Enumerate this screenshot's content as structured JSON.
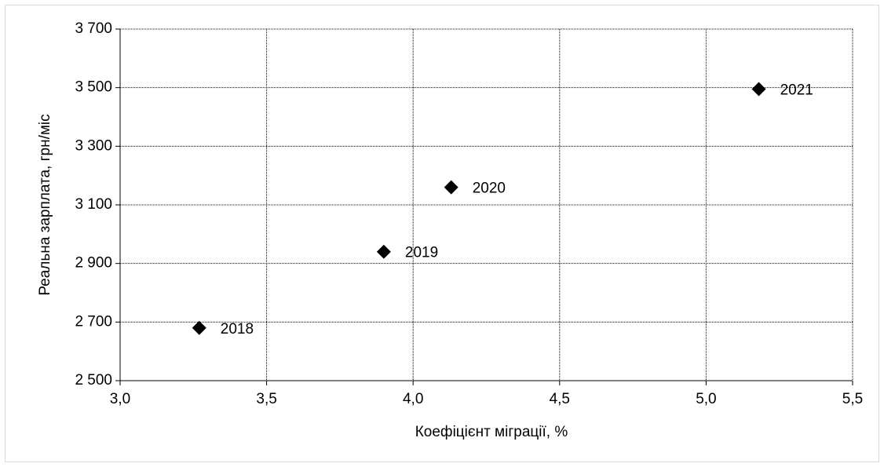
{
  "chart_data": {
    "type": "scatter",
    "x_label": "Коефіцієнт міграції, %",
    "y_label": "Реальна зарплата, грн/міс",
    "x": [
      3.27,
      3.9,
      4.13,
      5.18
    ],
    "values": [
      2680,
      2940,
      3160,
      3495
    ],
    "labels": [
      "2018",
      "2019",
      "2020",
      "2021"
    ],
    "color": "#000000",
    "marker": "diamond",
    "xlim": [
      3.0,
      5.5
    ],
    "xticks": [
      {
        "value": 3.0,
        "label": "3,0"
      },
      {
        "value": 3.5,
        "label": "3,5"
      },
      {
        "value": 4.0,
        "label": "4,0"
      },
      {
        "value": 4.5,
        "label": "4,5"
      },
      {
        "value": 5.0,
        "label": "5,0"
      },
      {
        "value": 5.5,
        "label": "5,5"
      }
    ],
    "ylim": [
      2500,
      3700
    ],
    "yticks": [
      {
        "value": 2500,
        "label": "2 500"
      },
      {
        "value": 2700,
        "label": "2 700"
      },
      {
        "value": 2900,
        "label": "2 900"
      },
      {
        "value": 3100,
        "label": "3 100"
      },
      {
        "value": 3300,
        "label": "3 300"
      },
      {
        "value": 3500,
        "label": "3 500"
      },
      {
        "value": 3700,
        "label": "3 700"
      }
    ],
    "grid": true
  }
}
